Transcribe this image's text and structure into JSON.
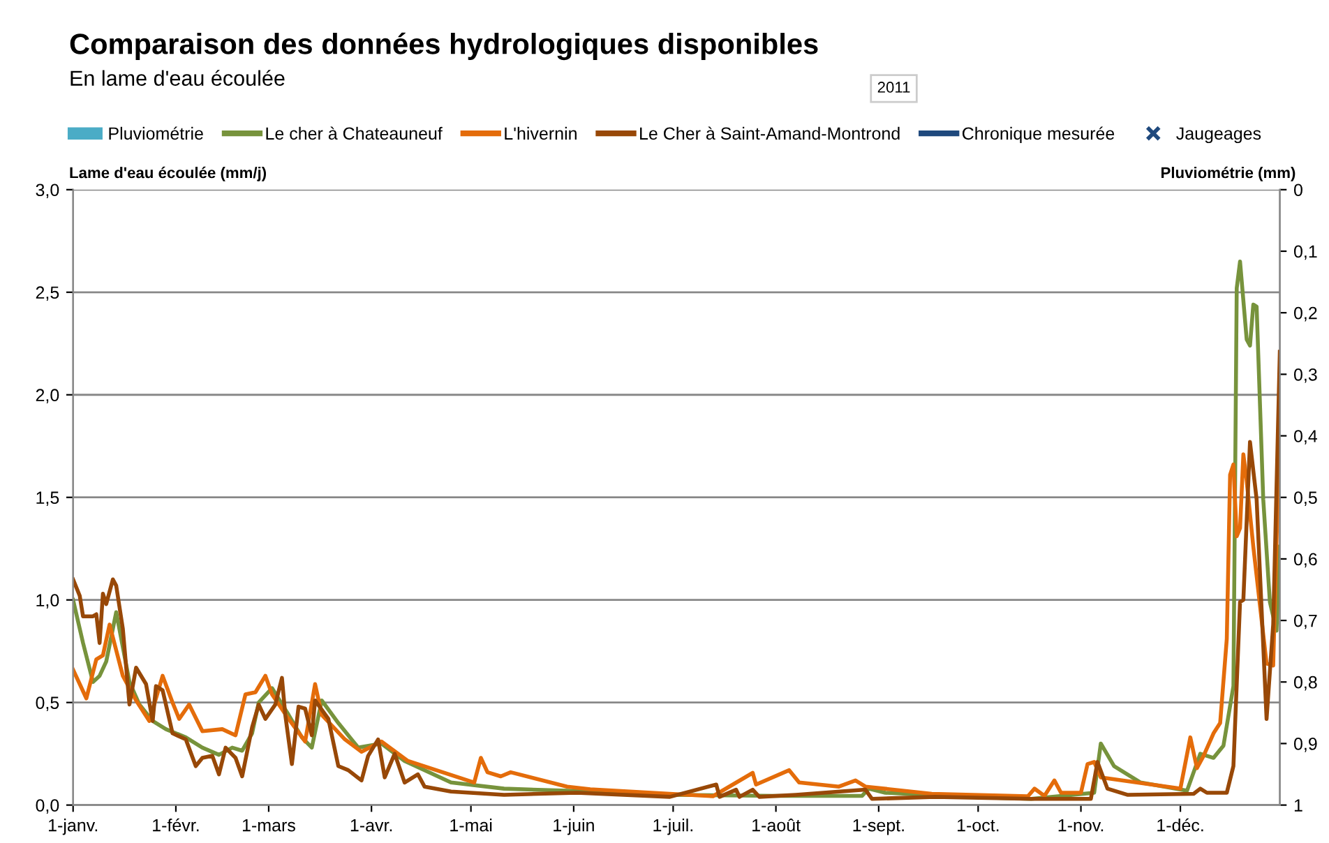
{
  "chart_data": {
    "type": "line",
    "title": "Comparaison des données hydrologiques disponibles",
    "subtitle": "En lame d'eau écoulée",
    "annotations": [
      "2011"
    ],
    "xlabel": null,
    "ylabel": "Lame d'eau écoulée (mm/j)",
    "y2label": "Pluviométrie (mm)",
    "xlim": [
      "2011-01-01",
      "2011-12-31"
    ],
    "xticks": [
      {
        "value": "2011-01-01",
        "label": "1-janv."
      },
      {
        "value": "2011-02-01",
        "label": "1-févr."
      },
      {
        "value": "2011-03-01",
        "label": "1-mars"
      },
      {
        "value": "2011-04-01",
        "label": "1-avr."
      },
      {
        "value": "2011-05-01",
        "label": "1-mai"
      },
      {
        "value": "2011-06-01",
        "label": "1-juin"
      },
      {
        "value": "2011-07-01",
        "label": "1-juil."
      },
      {
        "value": "2011-08-01",
        "label": "1-août"
      },
      {
        "value": "2011-09-01",
        "label": "1-sept."
      },
      {
        "value": "2011-10-01",
        "label": "1-oct."
      },
      {
        "value": "2011-11-01",
        "label": "1-nov."
      },
      {
        "value": "2011-12-01",
        "label": "1-déc."
      }
    ],
    "ylim": [
      0,
      3
    ],
    "yticks": [
      {
        "value": 0,
        "label": "0,0"
      },
      {
        "value": 0.5,
        "label": "0,5"
      },
      {
        "value": 1,
        "label": "1,0"
      },
      {
        "value": 1.5,
        "label": "1,5"
      },
      {
        "value": 2,
        "label": "2,0"
      },
      {
        "value": 2.5,
        "label": "2,5"
      },
      {
        "value": 3,
        "label": "3,0"
      }
    ],
    "y2lim": [
      1,
      0
    ],
    "y2ticks": [
      0,
      {
        "value": 0.1,
        "label": "0,1"
      },
      {
        "value": 0.2,
        "label": "0,2"
      },
      {
        "value": 0.3,
        "label": "0,3"
      },
      {
        "value": 0.4,
        "label": "0,4"
      },
      {
        "value": 0.5,
        "label": "0,5"
      },
      {
        "value": 0.6,
        "label": "0,6"
      },
      {
        "value": 0.7,
        "label": "0,7"
      },
      {
        "value": 0.8,
        "label": "0,8"
      },
      {
        "value": 0.9,
        "label": "0,9"
      },
      1
    ],
    "grid": "y",
    "legend": "top",
    "marker": "none",
    "line_style": "solid",
    "series": [
      {
        "name": "Pluviométrie",
        "type": "bar",
        "color": "#4bacc6"
      },
      {
        "name": "Le cher à Chateauneuf",
        "color": "#77933c",
        "x": [
          "2011-01-01",
          "2011-01-04",
          "2011-01-07",
          "2011-01-09",
          "2011-01-11",
          "2011-01-14",
          "2011-01-18",
          "2011-01-21",
          "2011-01-25",
          "2011-01-29",
          "2011-02-04",
          "2011-02-09",
          "2011-02-14",
          "2011-02-18",
          "2011-02-21",
          "2011-02-24",
          "2011-02-26",
          "2011-03-02",
          "2011-03-07",
          "2011-03-11",
          "2011-03-14",
          "2011-03-17",
          "2011-03-22",
          "2011-03-28",
          "2011-04-04",
          "2011-04-11",
          "2011-04-25",
          "2011-05-11",
          "2011-05-30",
          "2011-07-01",
          "2011-08-01",
          "2011-08-27",
          "2011-08-29",
          "2011-09-03",
          "2011-09-28",
          "2011-10-17",
          "2011-11-05",
          "2011-11-07",
          "2011-11-11",
          "2011-11-19",
          "2011-12-03",
          "2011-12-07",
          "2011-12-11",
          "2011-12-14",
          "2011-12-17",
          "2011-12-18",
          "2011-12-19",
          "2011-12-21",
          "2011-12-22",
          "2011-12-23",
          "2011-12-24",
          "2011-12-26",
          "2011-12-28",
          "2011-12-30",
          "2011-12-31"
        ],
        "values": [
          1.0,
          0.79,
          0.6,
          0.63,
          0.7,
          0.94,
          0.6,
          0.49,
          0.41,
          0.37,
          0.33,
          0.28,
          0.245,
          0.28,
          0.265,
          0.35,
          0.5,
          0.57,
          0.44,
          0.33,
          0.28,
          0.51,
          0.4,
          0.28,
          0.3,
          0.215,
          0.11,
          0.08,
          0.07,
          0.05,
          0.045,
          0.045,
          0.08,
          0.06,
          0.04,
          0.03,
          0.06,
          0.3,
          0.19,
          0.11,
          0.07,
          0.25,
          0.23,
          0.29,
          0.58,
          2.52,
          2.65,
          2.27,
          2.24,
          2.44,
          2.43,
          1.49,
          0.99,
          0.85,
          1.26
        ]
      },
      {
        "name": "L'hivernin",
        "color": "#e46c0a",
        "x": [
          "2011-01-01",
          "2011-01-05",
          "2011-01-08",
          "2011-01-10",
          "2011-01-12",
          "2011-01-16",
          "2011-01-20",
          "2011-01-24",
          "2011-01-28",
          "2011-01-31",
          "2011-02-02",
          "2011-02-05",
          "2011-02-09",
          "2011-02-15",
          "2011-02-19",
          "2011-02-22",
          "2011-02-25",
          "2011-02-28",
          "2011-03-02",
          "2011-03-07",
          "2011-03-12",
          "2011-03-15",
          "2011-03-17",
          "2011-03-24",
          "2011-03-29",
          "2011-04-04",
          "2011-04-12",
          "2011-05-02",
          "2011-05-04",
          "2011-05-06",
          "2011-05-10",
          "2011-05-13",
          "2011-05-30",
          "2011-06-06",
          "2011-06-30",
          "2011-07-13",
          "2011-07-25",
          "2011-07-26",
          "2011-08-05",
          "2011-08-08",
          "2011-08-20",
          "2011-08-25",
          "2011-08-28",
          "2011-09-17",
          "2011-10-16",
          "2011-10-18",
          "2011-10-21",
          "2011-10-24",
          "2011-10-26",
          "2011-11-01",
          "2011-11-03",
          "2011-11-05",
          "2011-11-07",
          "2011-12-01",
          "2011-12-04",
          "2011-12-06",
          "2011-12-08",
          "2011-12-11",
          "2011-12-13",
          "2011-12-15",
          "2011-12-16",
          "2011-12-17",
          "2011-12-18",
          "2011-12-19",
          "2011-12-20",
          "2011-12-21",
          "2011-12-23",
          "2011-12-27",
          "2011-12-29",
          "2011-12-31"
        ],
        "values": [
          0.66,
          0.52,
          0.71,
          0.73,
          0.88,
          0.63,
          0.51,
          0.41,
          0.63,
          0.5,
          0.42,
          0.49,
          0.36,
          0.37,
          0.34,
          0.54,
          0.55,
          0.63,
          0.54,
          0.42,
          0.31,
          0.59,
          0.44,
          0.32,
          0.26,
          0.31,
          0.215,
          0.11,
          0.23,
          0.16,
          0.14,
          0.16,
          0.09,
          0.077,
          0.055,
          0.043,
          0.157,
          0.1,
          0.17,
          0.11,
          0.09,
          0.12,
          0.09,
          0.055,
          0.043,
          0.08,
          0.045,
          0.12,
          0.06,
          0.06,
          0.2,
          0.21,
          0.135,
          0.08,
          0.33,
          0.18,
          0.24,
          0.35,
          0.4,
          0.81,
          1.61,
          1.66,
          1.31,
          1.35,
          1.71,
          1.58,
          1.26,
          0.69,
          0.68,
          1.88
        ]
      },
      {
        "name": "Le Cher à Saint-Amand-Montrond",
        "color": "#984807",
        "x": [
          "2011-01-01",
          "2011-01-03",
          "2011-01-04",
          "2011-01-07",
          "2011-01-08",
          "2011-01-09",
          "2011-01-10",
          "2011-01-11",
          "2011-01-13",
          "2011-01-14",
          "2011-01-16",
          "2011-01-18",
          "2011-01-20",
          "2011-01-23",
          "2011-01-25",
          "2011-01-26",
          "2011-01-28",
          "2011-01-31",
          "2011-02-04",
          "2011-02-07",
          "2011-02-09",
          "2011-02-12",
          "2011-02-14",
          "2011-02-16",
          "2011-02-19",
          "2011-02-21",
          "2011-02-24",
          "2011-02-26",
          "2011-02-28",
          "2011-03-03",
          "2011-03-05",
          "2011-03-06",
          "2011-03-08",
          "2011-03-10",
          "2011-03-12",
          "2011-03-14",
          "2011-03-15",
          "2011-03-19",
          "2011-03-22",
          "2011-03-25",
          "2011-03-29",
          "2011-03-31",
          "2011-04-03",
          "2011-04-05",
          "2011-04-08",
          "2011-04-11",
          "2011-04-15",
          "2011-04-17",
          "2011-04-25",
          "2011-05-11",
          "2011-06-02",
          "2011-06-30",
          "2011-07-14",
          "2011-07-15",
          "2011-07-20",
          "2011-07-21",
          "2011-07-25",
          "2011-07-27",
          "2011-08-07",
          "2011-08-28",
          "2011-08-30",
          "2011-09-18",
          "2011-10-17",
          "2011-11-04",
          "2011-11-06",
          "2011-11-09",
          "2011-11-15",
          "2011-12-05",
          "2011-12-07",
          "2011-12-09",
          "2011-12-15",
          "2011-12-17",
          "2011-12-19",
          "2011-12-20",
          "2011-12-22",
          "2011-12-24",
          "2011-12-27",
          "2011-12-29",
          "2011-12-31"
        ],
        "values": [
          1.1,
          1.02,
          0.92,
          0.92,
          0.93,
          0.79,
          1.03,
          0.98,
          1.1,
          1.07,
          0.86,
          0.49,
          0.67,
          0.59,
          0.41,
          0.58,
          0.56,
          0.35,
          0.32,
          0.19,
          0.23,
          0.24,
          0.15,
          0.28,
          0.23,
          0.14,
          0.38,
          0.49,
          0.42,
          0.49,
          0.62,
          0.44,
          0.2,
          0.48,
          0.47,
          0.34,
          0.51,
          0.42,
          0.19,
          0.17,
          0.12,
          0.24,
          0.32,
          0.135,
          0.25,
          0.11,
          0.15,
          0.09,
          0.066,
          0.05,
          0.06,
          0.04,
          0.1,
          0.04,
          0.075,
          0.04,
          0.075,
          0.04,
          0.05,
          0.075,
          0.03,
          0.04,
          0.03,
          0.03,
          0.21,
          0.08,
          0.05,
          0.055,
          0.08,
          0.06,
          0.06,
          0.19,
          0.99,
          1.0,
          1.77,
          1.49,
          0.42,
          0.88,
          2.21
        ]
      },
      {
        "name": "Chronique mesurée",
        "color": "#1f497d"
      },
      {
        "name": "Jaugeages",
        "type": "scatter",
        "marker": "cross",
        "color": "#1f497d"
      }
    ]
  }
}
